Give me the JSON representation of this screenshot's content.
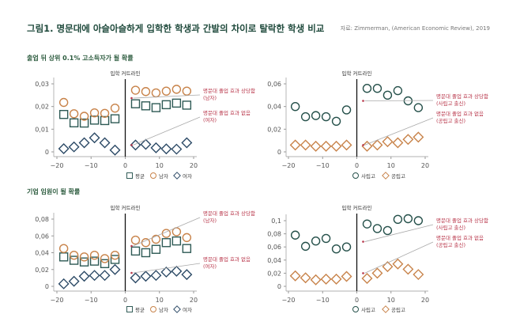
{
  "title": "그림1. 명문대에 아슬아슬하게 입학한 학생과 간발의 차이로 탈락한 학생 비교",
  "source": "자료: Zimmerman, (American Economic Review), 2019",
  "colors": {
    "avg": "#2e5a55",
    "male": "#c8834a",
    "female": "#2c4a66",
    "private": "#25504a",
    "public": "#c8834a",
    "annotation": "#b8364a",
    "heading": "#2d5c3f"
  },
  "chart_data": [
    {
      "type": "scatter",
      "subtitle": "출업 뒤 상위 0.1% 고소득자가 될 확률",
      "cutoff_label": "입학 커트라인",
      "x": [
        -18,
        -15,
        -12,
        -9,
        -6,
        -3,
        3,
        6,
        9,
        12,
        15,
        18
      ],
      "xticks": [
        "-20",
        "-10",
        "0",
        "10",
        "20"
      ],
      "xlim": [
        -20,
        20
      ],
      "yticks": [
        "0",
        "0.01",
        "0.02",
        "0.03"
      ],
      "ylim": [
        0,
        0.03
      ],
      "series": [
        {
          "name": "평균",
          "marker": "square",
          "values": [
            0.0165,
            0.0128,
            0.0127,
            0.014,
            0.0138,
            0.0146,
            0.0212,
            0.0203,
            0.0195,
            0.0208,
            0.0215,
            0.0206
          ]
        },
        {
          "name": "남자",
          "marker": "circle",
          "values": [
            0.0218,
            0.0168,
            0.0157,
            0.0172,
            0.017,
            0.0193,
            0.0272,
            0.0266,
            0.026,
            0.0268,
            0.0276,
            0.0268
          ]
        },
        {
          "name": "여자",
          "marker": "diamond",
          "values": [
            0.0014,
            0.0022,
            0.004,
            0.0062,
            0.004,
            0.0008,
            0.003,
            0.0033,
            0.0018,
            0.0013,
            0.0012,
            0.004
          ]
        }
      ],
      "annotations": [
        {
          "lines": [
            "명문대 졸업 효과 상당함",
            "(남자)"
          ],
          "y": 0.0237
        },
        {
          "lines": [
            "명문대 졸업 효과 없음",
            "(여자)"
          ],
          "y": 0.003
        }
      ]
    },
    {
      "type": "scatter",
      "subtitle": "",
      "cutoff_label": "입학 커트라인",
      "x": [
        -18,
        -15,
        -12,
        -9,
        -6,
        -3,
        3,
        6,
        9,
        12,
        15,
        18
      ],
      "xticks": [
        "-20",
        "-10",
        "0",
        "10",
        "20"
      ],
      "xlim": [
        -20,
        20
      ],
      "yticks": [
        "0",
        "0.02",
        "0.04",
        "0.06"
      ],
      "ylim": [
        0,
        0.06
      ],
      "series": [
        {
          "name": "사립고",
          "marker": "circle",
          "values": [
            0.04,
            0.031,
            0.032,
            0.031,
            0.027,
            0.037,
            0.056,
            0.056,
            0.05,
            0.054,
            0.045,
            0.039
          ]
        },
        {
          "name": "공립고",
          "marker": "diamond",
          "values": [
            0.006,
            0.006,
            0.005,
            0.005,
            0.005,
            0.006,
            0.005,
            0.006,
            0.009,
            0.008,
            0.011,
            0.013
          ]
        }
      ],
      "annotations": [
        {
          "lines": [
            "명문대 졸업 효과 상당함",
            "(사립고 출신)"
          ],
          "y": 0.045
        },
        {
          "lines": [
            "명문대 졸업 효과 없음",
            "(공립고 출신)"
          ],
          "y": 0.006
        }
      ]
    },
    {
      "type": "scatter",
      "subtitle": "기업 임원이 될 확률",
      "cutoff_label": "입학 커트라인",
      "x": [
        -18,
        -15,
        -12,
        -9,
        -6,
        -3,
        3,
        6,
        9,
        12,
        15,
        18
      ],
      "xticks": [
        "-20",
        "-10",
        "0",
        "10",
        "20"
      ],
      "xlim": [
        -20,
        20
      ],
      "yticks": [
        "0",
        "0.02",
        "0.04",
        "0.06",
        "0.08"
      ],
      "ylim": [
        0,
        0.08
      ],
      "series": [
        {
          "name": "평균",
          "marker": "square",
          "values": [
            0.035,
            0.031,
            0.029,
            0.03,
            0.027,
            0.032,
            0.042,
            0.04,
            0.044,
            0.052,
            0.054,
            0.045
          ]
        },
        {
          "name": "남자",
          "marker": "circle",
          "values": [
            0.045,
            0.037,
            0.035,
            0.037,
            0.033,
            0.037,
            0.055,
            0.052,
            0.056,
            0.063,
            0.065,
            0.058
          ]
        },
        {
          "name": "여자",
          "marker": "diamond",
          "values": [
            0.003,
            0.006,
            0.012,
            0.013,
            0.013,
            0.02,
            0.01,
            0.012,
            0.013,
            0.017,
            0.018,
            0.014
          ]
        }
      ],
      "annotations": [
        {
          "lines": [
            "명문대 졸업 효과 상당함",
            "(남자)"
          ],
          "y": 0.048
        },
        {
          "lines": [
            "명문대 졸업 효과 없음",
            "(여자)"
          ],
          "y": 0.016
        }
      ]
    },
    {
      "type": "scatter",
      "subtitle": "",
      "cutoff_label": "입학 커트라인",
      "x": [
        -18,
        -15,
        -12,
        -9,
        -6,
        -3,
        3,
        6,
        9,
        12,
        15,
        18
      ],
      "xticks": [
        "-20",
        "-10",
        "0",
        "10",
        "20"
      ],
      "xlim": [
        -20,
        20
      ],
      "yticks": [
        "0",
        "0.02",
        "0.04",
        "0.06",
        "0.08",
        "0.1"
      ],
      "ylim": [
        0,
        0.1
      ],
      "series": [
        {
          "name": "사립고",
          "marker": "circle",
          "values": [
            0.078,
            0.061,
            0.069,
            0.073,
            0.057,
            0.06,
            0.095,
            0.088,
            0.085,
            0.102,
            0.103,
            0.1
          ]
        },
        {
          "name": "공립고",
          "marker": "diamond",
          "values": [
            0.016,
            0.013,
            0.01,
            0.011,
            0.011,
            0.015,
            0.012,
            0.02,
            0.03,
            0.034,
            0.026,
            0.018
          ]
        }
      ],
      "annotations": [
        {
          "lines": [
            "명문대 졸업 효과 상당함",
            "(사립고 출신)"
          ],
          "y": 0.068
        },
        {
          "lines": [
            "명문대 졸업 효과 없음",
            "(공립고 출신)"
          ],
          "y": 0.02
        }
      ]
    }
  ]
}
